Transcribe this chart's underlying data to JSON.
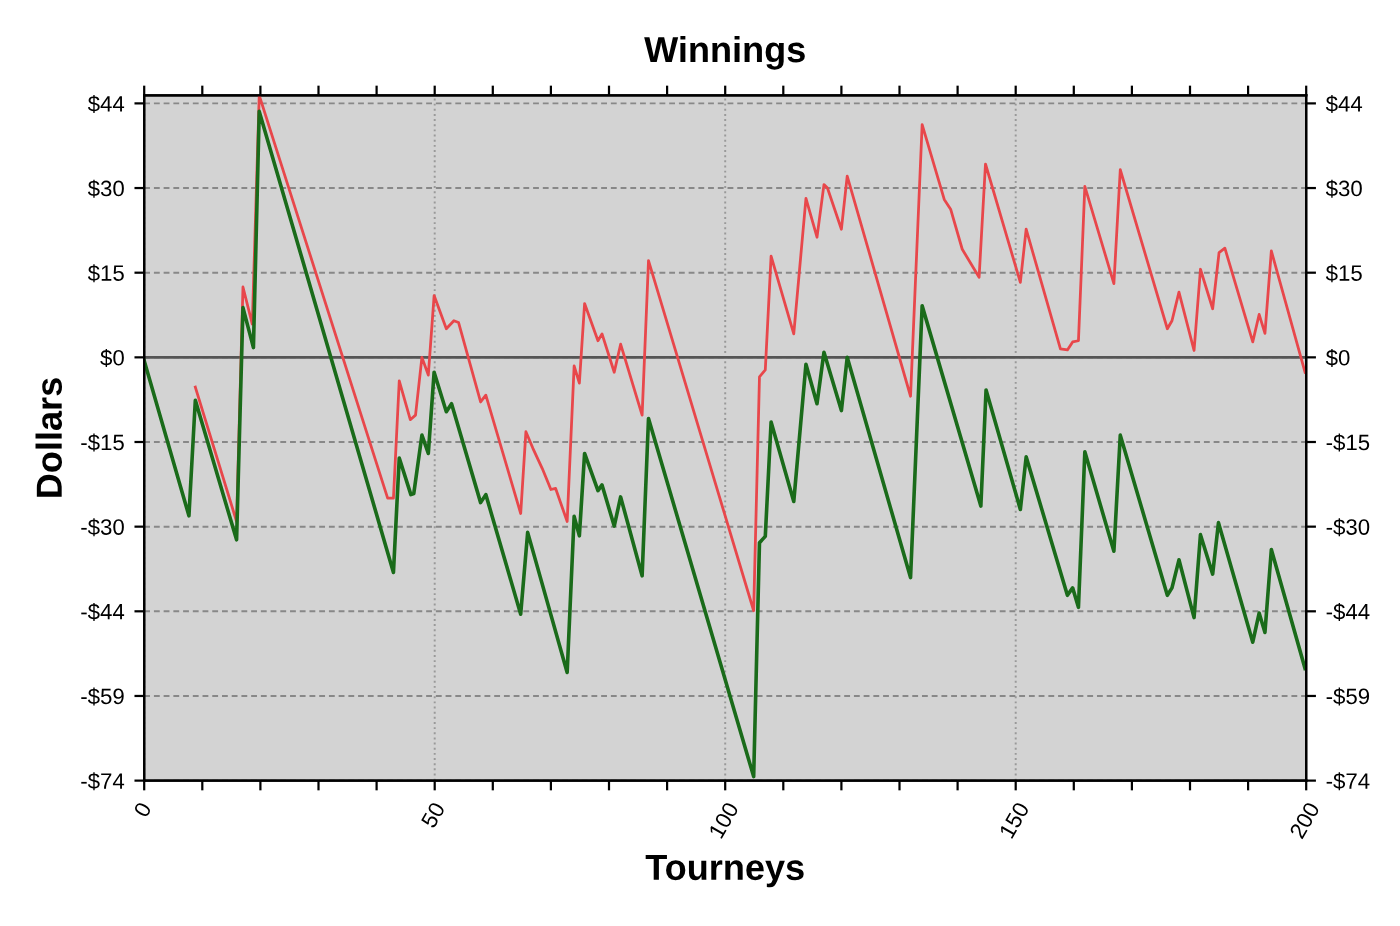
{
  "chart_data": {
    "type": "line",
    "title": "Winnings",
    "xlabel": "Tourneys",
    "ylabel": "Dollars",
    "xlim": [
      0,
      200
    ],
    "xticks": [
      0,
      {
        "value": 10,
        "label": null
      },
      {
        "value": 20,
        "label": null
      },
      {
        "value": 30,
        "label": null
      },
      {
        "value": 40,
        "label": null
      },
      50,
      {
        "value": 60,
        "label": null
      },
      {
        "value": 70,
        "label": null
      },
      {
        "value": 80,
        "label": null
      },
      {
        "value": 90,
        "label": null
      },
      100,
      {
        "value": 110,
        "label": null
      },
      {
        "value": 120,
        "label": null
      },
      {
        "value": 130,
        "label": null
      },
      {
        "value": 140,
        "label": null
      },
      150,
      {
        "value": 160,
        "label": null
      },
      {
        "value": 170,
        "label": null
      },
      {
        "value": 180,
        "label": null
      },
      {
        "value": 190,
        "label": null
      },
      200
    ],
    "ylim": [
      -74,
      45.8
    ],
    "yticks": [
      {
        "value": 44.4,
        "label": "$44"
      },
      {
        "value": 29.6,
        "label": "$30"
      },
      {
        "value": 14.8,
        "label": "$15"
      },
      {
        "value": 0,
        "label": "$0"
      },
      {
        "value": -14.8,
        "label": "-$15"
      },
      {
        "value": -29.6,
        "label": "-$30"
      },
      {
        "value": -44.4,
        "label": "-$44"
      },
      {
        "value": -59.2,
        "label": "-$59"
      },
      {
        "value": -74,
        "label": "-$74"
      }
    ],
    "y2lim": [
      -74,
      45.8
    ],
    "y2ticks": [
      {
        "value": 44.4,
        "label": "$44"
      },
      {
        "value": 29.6,
        "label": "$30"
      },
      {
        "value": 14.8,
        "label": "$15"
      },
      {
        "value": 0,
        "label": "$0"
      },
      {
        "value": -14.8,
        "label": "-$15"
      },
      {
        "value": -29.6,
        "label": "-$30"
      },
      {
        "value": -44.4,
        "label": "-$44"
      },
      {
        "value": -59.2,
        "label": "-$59"
      },
      {
        "value": -74,
        "label": "-$74"
      }
    ],
    "grid": true,
    "marker": "none",
    "line_style": "solid",
    "ref_lines": [
      {
        "axis": "y",
        "value": 0,
        "label": null,
        "color": "#555555"
      }
    ],
    "series": [
      {
        "color": "#e8474b",
        "x": [
          8.8,
          15.9,
          17,
          18.6,
          19.8,
          41.9,
          42.9,
          43.9,
          45.8,
          46.7,
          47.8,
          48.9,
          49.9,
          52,
          53.3,
          54.1,
          57.9,
          58.8,
          64.8,
          65.7,
          66.9,
          68.5,
          70,
          70.8,
          72.8,
          74,
          74.9,
          75.8,
          78.1,
          78.8,
          80.9,
          82,
          85.7,
          86.8,
          104.9,
          105.9,
          106.9,
          107.9,
          111.8,
          113.9,
          115.8,
          117,
          117.6,
          120,
          121,
          131.9,
          133.9,
          137.7,
          138.8,
          140.8,
          143.7,
          144.8,
          150.8,
          151.8,
          157.7,
          158.9,
          159.8,
          160.8,
          161.9,
          166.9,
          168,
          176.1,
          176.9,
          178.1,
          180.7,
          181.8,
          183.9,
          185,
          186,
          190.8,
          191.9,
          192.9,
          194,
          199.8
        ],
        "values": [
          -5.2,
          -28.7,
          12.3,
          5.8,
          45.8,
          -24.6,
          -24.6,
          -4.1,
          -10.9,
          -10.1,
          0,
          -3.1,
          10.8,
          5.0,
          6.4,
          6.1,
          -7.8,
          -6.6,
          -27.3,
          -13.0,
          -15.9,
          -19.4,
          -23.1,
          -22.9,
          -28.7,
          -1.5,
          -4.5,
          9.4,
          2.9,
          4.1,
          -2.6,
          2.3,
          -10.1,
          16.9,
          -44.3,
          -3.4,
          -2.2,
          17.7,
          4.1,
          27.8,
          21.0,
          30.2,
          29.6,
          22.4,
          31.7,
          -6.8,
          40.7,
          27.6,
          25.9,
          18.9,
          14.0,
          33.8,
          13.1,
          22.4,
          1.5,
          1.3,
          2.7,
          2.9,
          29.9,
          12.9,
          32.8,
          5.0,
          6.4,
          11.4,
          1.2,
          15.4,
          8.5,
          18.3,
          19.1,
          2.7,
          7.5,
          4.2,
          18.6,
          -2.6
        ]
      },
      {
        "color": "#1a6b1a",
        "x": [
          0,
          7.7,
          8.8,
          15.9,
          17,
          18.8,
          19.8,
          42.9,
          43.9,
          45.9,
          46.4,
          47.8,
          48.9,
          49.9,
          52,
          52.9,
          57.9,
          58.8,
          64.8,
          66,
          72.8,
          74,
          74.9,
          75.8,
          78.1,
          78.8,
          80.9,
          82,
          85.7,
          86.8,
          104.9,
          105.9,
          106.9,
          107.9,
          111.8,
          113.9,
          115.8,
          117,
          120,
          121,
          131.9,
          133.9,
          144,
          144.9,
          150.8,
          151.8,
          158.9,
          159.8,
          160.8,
          161.9,
          166.9,
          168,
          176.1,
          176.9,
          178.1,
          180.7,
          181.8,
          183.9,
          184.9,
          190.8,
          191.9,
          192.9,
          194,
          199.8
        ],
        "values": [
          -0.6,
          -27.7,
          -7.5,
          -31.9,
          8.7,
          1.7,
          43.0,
          -37.6,
          -17.6,
          -24.0,
          -23.8,
          -13.6,
          -16.8,
          -2.6,
          -9.5,
          -8.1,
          -25.4,
          -24.0,
          -44.9,
          -30.6,
          -55.1,
          -27.8,
          -31.2,
          -16.8,
          -23.3,
          -22.3,
          -29.5,
          -24.4,
          -38.2,
          -10.7,
          -73.3,
          -32.4,
          -31.3,
          -11.3,
          -25.2,
          -1.2,
          -8.1,
          0.9,
          -9.3,
          0,
          -38.5,
          9.0,
          -26,
          -5.7,
          -26.6,
          -17.4,
          -41.6,
          -40.3,
          -43.7,
          -16.5,
          -33.9,
          -13.6,
          -41.6,
          -40.3,
          -35.4,
          -45.5,
          -31.0,
          -37.9,
          -28.9,
          -49.8,
          -44.7,
          -48.1,
          -33.6,
          -54.4
        ]
      }
    ]
  }
}
